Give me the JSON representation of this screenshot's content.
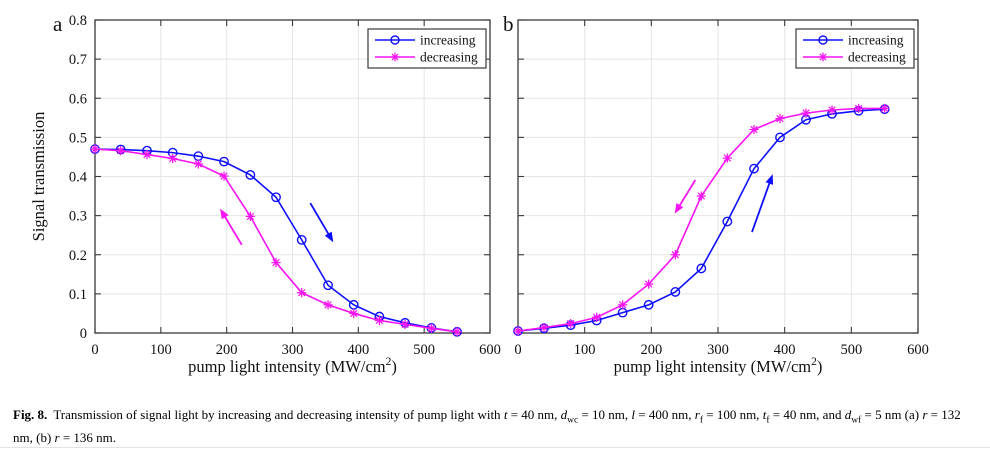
{
  "page": {
    "background": "#ffffff"
  },
  "colors": {
    "axis": "#3a3a3a",
    "grid": "#e5e5e5",
    "text": "#111111",
    "increasing_blue": "#0f0fff",
    "decreasing_magenta": "#f714f2"
  },
  "legend": {
    "items": [
      "increasing",
      "decreasing"
    ]
  },
  "caption_segments": [
    {
      "t": "Fig. 8.",
      "b": true
    },
    {
      "t": "Transmission of signal light by increasing and decreasing intensity of pump light with "
    },
    {
      "t": "t",
      "i": true
    },
    {
      "t": " = 40 nm, "
    },
    {
      "t": "d",
      "i": true
    },
    {
      "t": "wc",
      "sub": true
    },
    {
      "t": " = 10 nm, "
    },
    {
      "t": "l",
      "i": true
    },
    {
      "t": " = 400 nm, "
    },
    {
      "t": "r",
      "i": true
    },
    {
      "t": "f",
      "sub": true
    },
    {
      "t": " = 100 nm, "
    },
    {
      "t": "t",
      "i": true
    },
    {
      "t": "f",
      "sub": true
    },
    {
      "t": " = 40 nm, and "
    },
    {
      "t": "d",
      "i": true
    },
    {
      "t": "wf",
      "sub": true
    },
    {
      "t": " = 5 nm (a) "
    },
    {
      "t": "r",
      "i": true
    },
    {
      "t": " = 132 nm, (b) "
    },
    {
      "t": "r",
      "i": true
    },
    {
      "t": " = 136 nm."
    }
  ],
  "chart_data": [
    {
      "type": "line",
      "panel_label": "a",
      "ylabel": "Signal transmission",
      "xlabel_segments": [
        {
          "t": "pump light intensity (MW/cm"
        },
        {
          "t": "2",
          "sup": true
        },
        {
          "t": ")"
        }
      ],
      "xlim": [
        0,
        600
      ],
      "ylim": [
        0,
        0.8
      ],
      "xticks": [
        0,
        100,
        200,
        300,
        400,
        500,
        600
      ],
      "yticks": [
        0,
        0.1,
        0.2,
        0.3,
        0.4,
        0.5,
        0.6,
        0.7,
        0.8
      ],
      "ytick_labels_visible": true,
      "grid": true,
      "legend_position": "top-right",
      "x": [
        0,
        39,
        79,
        118,
        157,
        196,
        236,
        275,
        314,
        354,
        393,
        432,
        471,
        511,
        550
      ],
      "series": [
        {
          "name": "increasing",
          "color": "#0f0fff",
          "marker": "circle",
          "values": [
            0.47,
            0.469,
            0.466,
            0.461,
            0.452,
            0.438,
            0.404,
            0.347,
            0.238,
            0.122,
            0.072,
            0.042,
            0.026,
            0.013,
            0.003
          ]
        },
        {
          "name": "decreasing",
          "color": "#f714f2",
          "marker": "asterisk",
          "values": [
            0.47,
            0.466,
            0.456,
            0.446,
            0.432,
            0.401,
            0.298,
            0.18,
            0.103,
            0.072,
            0.05,
            0.032,
            0.022,
            0.012,
            0.003
          ]
        }
      ],
      "arrows": [
        {
          "color": "#f714f2",
          "from": [
            223,
            0.225
          ],
          "to": [
            190,
            0.318
          ]
        },
        {
          "color": "#0f0fff",
          "from": [
            327,
            0.332
          ],
          "to": [
            362,
            0.232
          ]
        }
      ]
    },
    {
      "type": "line",
      "panel_label": "b",
      "ylabel": "",
      "xlabel_segments": [
        {
          "t": "pump light intensity (MW/cm"
        },
        {
          "t": "2",
          "sup": true
        },
        {
          "t": ")"
        }
      ],
      "xlim": [
        0,
        600
      ],
      "ylim": [
        0,
        0.8
      ],
      "xticks": [
        0,
        100,
        200,
        300,
        400,
        500,
        600
      ],
      "yticks": [
        0,
        0.1,
        0.2,
        0.3,
        0.4,
        0.5,
        0.6,
        0.7,
        0.8
      ],
      "ytick_labels_visible": false,
      "grid": true,
      "legend_position": "top-right",
      "x": [
        0,
        39,
        79,
        118,
        157,
        196,
        236,
        275,
        314,
        354,
        393,
        432,
        471,
        511,
        550
      ],
      "series": [
        {
          "name": "increasing",
          "color": "#0f0fff",
          "marker": "circle",
          "values": [
            0.005,
            0.012,
            0.02,
            0.032,
            0.052,
            0.072,
            0.105,
            0.165,
            0.285,
            0.42,
            0.5,
            0.545,
            0.56,
            0.568,
            0.572
          ]
        },
        {
          "name": "decreasing",
          "color": "#f714f2",
          "marker": "asterisk",
          "values": [
            0.005,
            0.014,
            0.024,
            0.04,
            0.072,
            0.125,
            0.2,
            0.35,
            0.447,
            0.52,
            0.548,
            0.562,
            0.57,
            0.574,
            0.574
          ]
        }
      ],
      "arrows": [
        {
          "color": "#f714f2",
          "from": [
            266,
            0.391
          ],
          "to": [
            235,
            0.305
          ]
        },
        {
          "color": "#0f0fff",
          "from": [
            351,
            0.258
          ],
          "to": [
            382,
            0.406
          ]
        }
      ]
    }
  ]
}
